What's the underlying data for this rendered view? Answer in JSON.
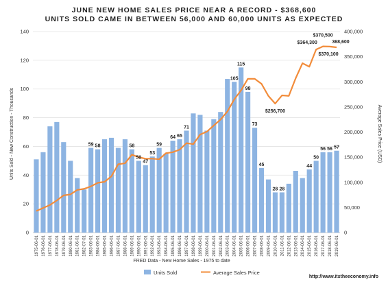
{
  "chart_data": {
    "type": "bar",
    "title": "JUNE NEW HOME SALES PRICE NEAR A RECORD - $368,600",
    "subtitle": "UNITS SOLD CAME IN BETWEEN 56,000 AND 60,000 UNITS AS EXPECTED",
    "xlabel": "FRED Data - New Home Sales - 1975 to date",
    "ylabel": "Units Sold - New Construction - Thousands",
    "y2label": "Average Sales Price (USD)",
    "ylim": [
      0,
      140
    ],
    "y2lim": [
      0,
      400000
    ],
    "yticks": [
      "0",
      "20",
      "40",
      "60",
      "80",
      "100",
      "120",
      "140"
    ],
    "y2ticks": [
      "0",
      "50,000",
      "100,000",
      "150,000",
      "200,000",
      "250,000",
      "300,000",
      "350,000",
      "400,000"
    ],
    "grid": true,
    "legend_position": "bottom",
    "categories": [
      "1975-06-01",
      "1976-06-01",
      "1977-06-01",
      "1978-06-01",
      "1979-06-01",
      "1980-06-01",
      "1981-06-01",
      "1982-07-01",
      "1983-06-01",
      "1984-06-01",
      "1985-06-01",
      "1986-06-01",
      "1987-06-01",
      "1988-06-01",
      "1989-06-01",
      "1990-06-01",
      "1991-06-01",
      "1992-06-01",
      "1993-06-01",
      "1994-06-01",
      "1995-06-01",
      "1996-06-01",
      "1997-06-01",
      "1998-06-01",
      "1999-06-01",
      "2000-06-01",
      "2001-06-01",
      "2002-06-01",
      "2003-06-01",
      "2004-06-01",
      "2005-06-01",
      "2006-06-01",
      "2007-06-01",
      "2008-06-01",
      "2009-06-01",
      "2010-06-01",
      "2011-06-01",
      "2012-06-01",
      "2013-06-01",
      "2014-06-01",
      "2015-06-01",
      "2016-06-01",
      "2017-06-01",
      "2018-06-01",
      "2019-06-01"
    ],
    "series": [
      {
        "name": "Units Sold",
        "type": "bar",
        "axis": "left",
        "color": "#8db4e2",
        "values": [
          51,
          56,
          74,
          77,
          63,
          50,
          38,
          30,
          59,
          58,
          65,
          66,
          59,
          65,
          58,
          50,
          47,
          53,
          59,
          55,
          64,
          65,
          71,
          83,
          82,
          71,
          79,
          84,
          107,
          105,
          115,
          98,
          73,
          45,
          37,
          28,
          28,
          34,
          43,
          38,
          44,
          50,
          56,
          56,
          57
        ],
        "labels": {
          "8": "59",
          "9": "58",
          "14": "58",
          "15": "50",
          "16": "47",
          "17": "53",
          "18": "59",
          "20": "64",
          "21": "65",
          "22": "71",
          "29": "105",
          "30": "115",
          "31": "98",
          "32": "73",
          "33": "45",
          "35": "28",
          "36": "28",
          "40": "44",
          "41": "50",
          "42": "56",
          "43": "56",
          "44": "57"
        }
      },
      {
        "name": "Average Sales Price",
        "type": "line",
        "axis": "right",
        "color": "#f28c3a",
        "values": [
          43000,
          49000,
          55000,
          64000,
          74000,
          76000,
          85000,
          87000,
          92000,
          99000,
          101000,
          112000,
          136000,
          138000,
          155000,
          150000,
          147000,
          147000,
          146000,
          158000,
          160000,
          165000,
          178000,
          176000,
          195000,
          201000,
          213000,
          225000,
          241000,
          265000,
          283000,
          306000,
          306000,
          296000,
          272000,
          256700,
          273000,
          272000,
          307000,
          337000,
          330000,
          364300,
          370500,
          370100,
          368600
        ],
        "labels": {
          "35": "$256,700",
          "41": "$364,300",
          "42": "$370,500",
          "43": "$370,100",
          "44": "368,600"
        }
      }
    ]
  },
  "footer": {
    "url": "http://www.itstheeconomy.info"
  }
}
